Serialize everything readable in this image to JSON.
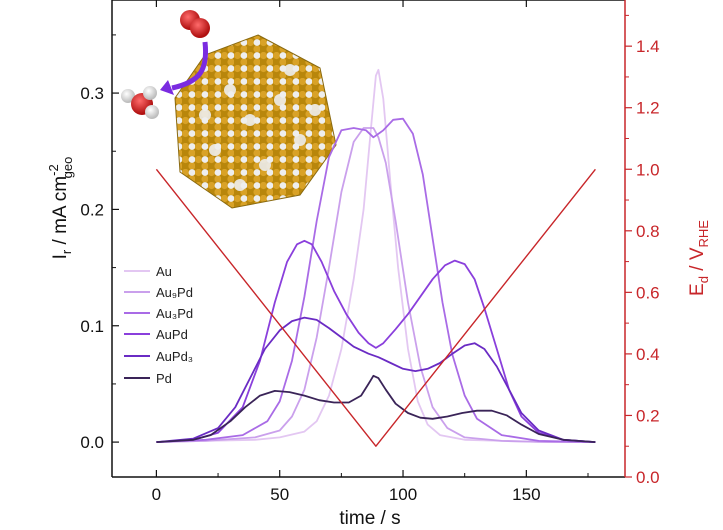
{
  "chart_data": {
    "type": "line",
    "xlabel": "time / s",
    "ylabel_left": {
      "main": "I",
      "sub1": "r",
      "mid": " / mA cm",
      "sup": "-2",
      "sub2": "geo"
    },
    "ylabel_right": {
      "main": "E",
      "sub1": "d",
      "mid": " / V",
      "sub2": "RHE"
    },
    "xlim": [
      -18,
      190
    ],
    "ylim_left": [
      -0.03,
      0.38
    ],
    "ylim_right": [
      0.0,
      1.55
    ],
    "x_ticks": [
      0,
      50,
      100,
      150
    ],
    "x_tick_labels": [
      "0",
      "50",
      "100",
      "150"
    ],
    "y_left_ticks": [
      0.0,
      0.1,
      0.2,
      0.3
    ],
    "y_left_tick_labels": [
      "0.0",
      "0.1",
      "0.2",
      "0.3"
    ],
    "y_right_ticks": [
      0.0,
      0.2,
      0.4,
      0.6,
      0.8,
      1.0,
      1.2,
      1.4
    ],
    "y_right_tick_labels": [
      "0.0",
      "0.2",
      "0.4",
      "0.6",
      "0.8",
      "1.0",
      "1.2",
      "1.4"
    ],
    "legend_position": "left",
    "colors": {
      "Au": "#e3c7f2",
      "Au9Pd": "#caa0ec",
      "Au3Pd": "#a96be6",
      "AuPd": "#8a3fdc",
      "AuPd3": "#6a2bc4",
      "Pd": "#3a2458",
      "potential": "#c8262a"
    },
    "series": [
      {
        "name": "Au",
        "legend_label": "Au",
        "axis": "left",
        "points": [
          [
            0,
            0.0
          ],
          [
            20,
            0.001
          ],
          [
            40,
            0.002
          ],
          [
            50,
            0.004
          ],
          [
            60,
            0.009
          ],
          [
            65,
            0.018
          ],
          [
            70,
            0.04
          ],
          [
            75,
            0.08
          ],
          [
            80,
            0.14
          ],
          [
            84,
            0.2
          ],
          [
            87,
            0.27
          ],
          [
            89,
            0.315
          ],
          [
            90,
            0.32
          ],
          [
            92,
            0.295
          ],
          [
            95,
            0.22
          ],
          [
            98,
            0.15
          ],
          [
            102,
            0.08
          ],
          [
            106,
            0.035
          ],
          [
            110,
            0.015
          ],
          [
            115,
            0.006
          ],
          [
            125,
            0.002
          ],
          [
            140,
            0.001
          ],
          [
            160,
            0.0
          ],
          [
            178,
            0.0
          ]
        ]
      },
      {
        "name": "Au9Pd",
        "legend_label": "Au₉Pd",
        "axis": "left",
        "points": [
          [
            0,
            0.0
          ],
          [
            20,
            0.001
          ],
          [
            40,
            0.004
          ],
          [
            50,
            0.01
          ],
          [
            55,
            0.022
          ],
          [
            60,
            0.045
          ],
          [
            65,
            0.09
          ],
          [
            70,
            0.15
          ],
          [
            75,
            0.215
          ],
          [
            80,
            0.258
          ],
          [
            84,
            0.27
          ],
          [
            88,
            0.27
          ],
          [
            90,
            0.262
          ],
          [
            93,
            0.24
          ],
          [
            97,
            0.19
          ],
          [
            102,
            0.12
          ],
          [
            107,
            0.065
          ],
          [
            112,
            0.03
          ],
          [
            118,
            0.012
          ],
          [
            125,
            0.004
          ],
          [
            140,
            0.001
          ],
          [
            160,
            0.0
          ],
          [
            178,
            0.0
          ]
        ]
      },
      {
        "name": "Au3Pd",
        "legend_label": "Au₃Pd",
        "axis": "left",
        "points": [
          [
            0,
            0.0
          ],
          [
            20,
            0.002
          ],
          [
            35,
            0.006
          ],
          [
            45,
            0.018
          ],
          [
            50,
            0.035
          ],
          [
            55,
            0.07
          ],
          [
            60,
            0.125
          ],
          [
            65,
            0.19
          ],
          [
            70,
            0.245
          ],
          [
            75,
            0.268
          ],
          [
            80,
            0.27
          ],
          [
            85,
            0.268
          ],
          [
            88,
            0.262
          ],
          [
            92,
            0.268
          ],
          [
            96,
            0.277
          ],
          [
            100,
            0.278
          ],
          [
            104,
            0.265
          ],
          [
            108,
            0.23
          ],
          [
            112,
            0.175
          ],
          [
            116,
            0.12
          ],
          [
            120,
            0.075
          ],
          [
            125,
            0.04
          ],
          [
            130,
            0.02
          ],
          [
            140,
            0.006
          ],
          [
            155,
            0.001
          ],
          [
            178,
            0.0
          ]
        ]
      },
      {
        "name": "AuPd",
        "legend_label": "AuPd",
        "axis": "left",
        "points": [
          [
            0,
            0.0
          ],
          [
            15,
            0.002
          ],
          [
            25,
            0.008
          ],
          [
            35,
            0.03
          ],
          [
            42,
            0.07
          ],
          [
            48,
            0.12
          ],
          [
            53,
            0.155
          ],
          [
            57,
            0.17
          ],
          [
            60,
            0.173
          ],
          [
            63,
            0.17
          ],
          [
            67,
            0.155
          ],
          [
            72,
            0.13
          ],
          [
            77,
            0.11
          ],
          [
            82,
            0.094
          ],
          [
            86,
            0.085
          ],
          [
            89,
            0.081
          ],
          [
            92,
            0.085
          ],
          [
            97,
            0.097
          ],
          [
            102,
            0.11
          ],
          [
            107,
            0.125
          ],
          [
            112,
            0.14
          ],
          [
            117,
            0.152
          ],
          [
            121,
            0.156
          ],
          [
            125,
            0.153
          ],
          [
            129,
            0.14
          ],
          [
            133,
            0.115
          ],
          [
            138,
            0.08
          ],
          [
            143,
            0.045
          ],
          [
            148,
            0.022
          ],
          [
            155,
            0.008
          ],
          [
            165,
            0.002
          ],
          [
            178,
            0.0
          ]
        ]
      },
      {
        "name": "AuPd3",
        "legend_label": "AuPd₃",
        "axis": "left",
        "points": [
          [
            0,
            0.0
          ],
          [
            15,
            0.003
          ],
          [
            25,
            0.012
          ],
          [
            32,
            0.03
          ],
          [
            38,
            0.055
          ],
          [
            44,
            0.08
          ],
          [
            50,
            0.096
          ],
          [
            55,
            0.104
          ],
          [
            60,
            0.107
          ],
          [
            65,
            0.105
          ],
          [
            70,
            0.098
          ],
          [
            75,
            0.09
          ],
          [
            80,
            0.082
          ],
          [
            86,
            0.076
          ],
          [
            90,
            0.073
          ],
          [
            95,
            0.068
          ],
          [
            100,
            0.063
          ],
          [
            105,
            0.061
          ],
          [
            110,
            0.063
          ],
          [
            115,
            0.068
          ],
          [
            120,
            0.076
          ],
          [
            125,
            0.083
          ],
          [
            129,
            0.085
          ],
          [
            133,
            0.08
          ],
          [
            138,
            0.065
          ],
          [
            143,
            0.045
          ],
          [
            148,
            0.025
          ],
          [
            155,
            0.01
          ],
          [
            165,
            0.002
          ],
          [
            178,
            0.0
          ]
        ]
      },
      {
        "name": "Pd",
        "legend_label": "Pd",
        "axis": "left",
        "points": [
          [
            0,
            0.0
          ],
          [
            15,
            0.002
          ],
          [
            22,
            0.006
          ],
          [
            30,
            0.018
          ],
          [
            36,
            0.03
          ],
          [
            42,
            0.04
          ],
          [
            48,
            0.044
          ],
          [
            54,
            0.043
          ],
          [
            60,
            0.04
          ],
          [
            66,
            0.036
          ],
          [
            72,
            0.034
          ],
          [
            78,
            0.034
          ],
          [
            83,
            0.04
          ],
          [
            86,
            0.05
          ],
          [
            88,
            0.057
          ],
          [
            90,
            0.055
          ],
          [
            93,
            0.045
          ],
          [
            97,
            0.033
          ],
          [
            102,
            0.025
          ],
          [
            107,
            0.021
          ],
          [
            112,
            0.02
          ],
          [
            118,
            0.022
          ],
          [
            124,
            0.025
          ],
          [
            130,
            0.027
          ],
          [
            136,
            0.027
          ],
          [
            142,
            0.023
          ],
          [
            148,
            0.015
          ],
          [
            155,
            0.007
          ],
          [
            165,
            0.002
          ],
          [
            178,
            0.0
          ]
        ]
      },
      {
        "name": "potential",
        "axis": "right",
        "points": [
          [
            0,
            1.0
          ],
          [
            89,
            0.1
          ],
          [
            178,
            1.0
          ]
        ]
      }
    ]
  }
}
